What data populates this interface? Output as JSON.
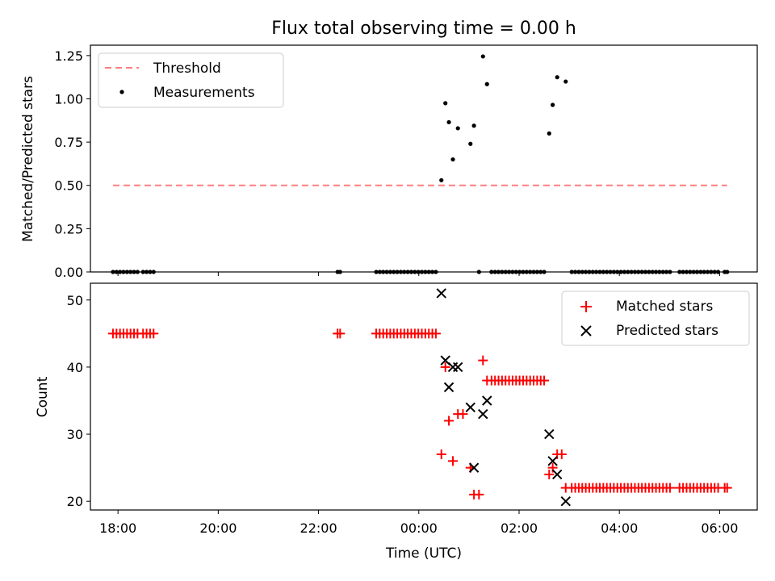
{
  "title": "Flux total observing time = 0.00 h",
  "colors": {
    "threshold": "#ff7f7f",
    "measurement": "#000000",
    "matched": "#ff0000",
    "predicted": "#000000"
  },
  "chart_data": [
    {
      "type": "scatter",
      "panel": "top",
      "ylabel": "Matched/Predicted stars",
      "xlabel": "",
      "xlim": [
        -6.55,
        6.75
      ],
      "ylim": [
        0.0,
        1.31
      ],
      "yticks": [
        0.0,
        0.25,
        0.5,
        0.75,
        1.0,
        1.25
      ],
      "ytick_labels": [
        "0.00",
        "0.25",
        "0.50",
        "0.75",
        "1.00",
        "1.25"
      ],
      "legend": {
        "position": "top-left",
        "entries": [
          "Threshold",
          "Measurements"
        ]
      },
      "threshold": {
        "label": "Threshold",
        "y": 0.5,
        "x_range": [
          -6.1,
          6.15
        ]
      },
      "series": [
        {
          "name": "Measurements",
          "points": [
            [
              -6.1,
              0
            ],
            [
              -6.03,
              0
            ],
            [
              -5.96,
              0
            ],
            [
              -5.89,
              0
            ],
            [
              -5.82,
              0
            ],
            [
              -5.75,
              0
            ],
            [
              -5.68,
              0
            ],
            [
              -5.61,
              0
            ],
            [
              -5.5,
              0
            ],
            [
              -5.43,
              0
            ],
            [
              -5.36,
              0
            ],
            [
              -5.29,
              0
            ],
            [
              -1.62,
              0
            ],
            [
              -1.57,
              0
            ],
            [
              -0.85,
              0
            ],
            [
              -0.78,
              0
            ],
            [
              -0.71,
              0
            ],
            [
              -0.64,
              0
            ],
            [
              -0.57,
              0
            ],
            [
              -0.5,
              0
            ],
            [
              -0.43,
              0
            ],
            [
              -0.36,
              0
            ],
            [
              -0.29,
              0
            ],
            [
              -0.22,
              0
            ],
            [
              -0.15,
              0
            ],
            [
              -0.08,
              0
            ],
            [
              -0.01,
              0
            ],
            [
              0.06,
              0
            ],
            [
              0.13,
              0
            ],
            [
              0.2,
              0
            ],
            [
              0.27,
              0
            ],
            [
              0.34,
              0
            ],
            [
              0.45,
              0.53
            ],
            [
              0.53,
              0.975
            ],
            [
              0.6,
              0.865
            ],
            [
              0.68,
              0.65
            ],
            [
              0.78,
              0.83
            ],
            [
              1.03,
              0.74
            ],
            [
              1.1,
              0.845
            ],
            [
              1.28,
              1.245
            ],
            [
              1.36,
              1.085
            ],
            [
              1.2,
              0
            ],
            [
              1.45,
              0
            ],
            [
              1.52,
              0
            ],
            [
              1.59,
              0
            ],
            [
              1.66,
              0
            ],
            [
              1.73,
              0
            ],
            [
              1.8,
              0
            ],
            [
              1.87,
              0
            ],
            [
              1.94,
              0
            ],
            [
              2.01,
              0
            ],
            [
              2.08,
              0
            ],
            [
              2.15,
              0
            ],
            [
              2.22,
              0
            ],
            [
              2.29,
              0
            ],
            [
              2.36,
              0
            ],
            [
              2.43,
              0
            ],
            [
              2.5,
              0
            ],
            [
              2.6,
              0.8
            ],
            [
              2.67,
              0.965
            ],
            [
              2.76,
              1.125
            ],
            [
              2.93,
              1.1
            ],
            [
              3.05,
              0
            ],
            [
              3.12,
              0
            ],
            [
              3.19,
              0
            ],
            [
              3.26,
              0
            ],
            [
              3.33,
              0
            ],
            [
              3.4,
              0
            ],
            [
              3.47,
              0
            ],
            [
              3.54,
              0
            ],
            [
              3.61,
              0
            ],
            [
              3.68,
              0
            ],
            [
              3.75,
              0
            ],
            [
              3.82,
              0
            ],
            [
              3.89,
              0
            ],
            [
              3.96,
              0
            ],
            [
              4.03,
              0
            ],
            [
              4.1,
              0
            ],
            [
              4.17,
              0
            ],
            [
              4.24,
              0
            ],
            [
              4.31,
              0
            ],
            [
              4.38,
              0
            ],
            [
              4.45,
              0
            ],
            [
              4.52,
              0
            ],
            [
              4.59,
              0
            ],
            [
              4.66,
              0
            ],
            [
              4.73,
              0
            ],
            [
              4.8,
              0
            ],
            [
              4.87,
              0
            ],
            [
              4.94,
              0
            ],
            [
              5.01,
              0
            ],
            [
              5.2,
              0
            ],
            [
              5.27,
              0
            ],
            [
              5.34,
              0
            ],
            [
              5.41,
              0
            ],
            [
              5.48,
              0
            ],
            [
              5.55,
              0
            ],
            [
              5.62,
              0
            ],
            [
              5.69,
              0
            ],
            [
              5.76,
              0
            ],
            [
              5.83,
              0
            ],
            [
              5.9,
              0
            ],
            [
              5.97,
              0
            ],
            [
              6.1,
              0
            ],
            [
              6.15,
              0
            ]
          ]
        }
      ]
    },
    {
      "type": "scatter",
      "panel": "bottom",
      "ylabel": "Count",
      "xlabel": "Time (UTC)",
      "xlim": [
        -6.55,
        6.75
      ],
      "ylim": [
        18.7,
        52.5
      ],
      "yticks": [
        20,
        30,
        40,
        50
      ],
      "ytick_labels": [
        "20",
        "30",
        "40",
        "50"
      ],
      "xticks": [
        -6,
        -4,
        -2,
        0,
        2,
        4,
        6
      ],
      "xtick_labels": [
        "18:00",
        "20:00",
        "22:00",
        "00:00",
        "02:00",
        "04:00",
        "06:00"
      ],
      "legend": {
        "position": "top-right",
        "entries": [
          "Matched stars",
          "Predicted stars"
        ]
      },
      "series": [
        {
          "name": "Matched stars",
          "marker": "plus",
          "points": [
            [
              -6.1,
              45
            ],
            [
              -6.03,
              45
            ],
            [
              -5.96,
              45
            ],
            [
              -5.89,
              45
            ],
            [
              -5.82,
              45
            ],
            [
              -5.75,
              45
            ],
            [
              -5.68,
              45
            ],
            [
              -5.61,
              45
            ],
            [
              -5.5,
              45
            ],
            [
              -5.43,
              45
            ],
            [
              -5.36,
              45
            ],
            [
              -5.29,
              45
            ],
            [
              -1.62,
              45
            ],
            [
              -1.57,
              45
            ],
            [
              -0.85,
              45
            ],
            [
              -0.78,
              45
            ],
            [
              -0.71,
              45
            ],
            [
              -0.64,
              45
            ],
            [
              -0.57,
              45
            ],
            [
              -0.5,
              45
            ],
            [
              -0.43,
              45
            ],
            [
              -0.36,
              45
            ],
            [
              -0.29,
              45
            ],
            [
              -0.22,
              45
            ],
            [
              -0.15,
              45
            ],
            [
              -0.08,
              45
            ],
            [
              -0.01,
              45
            ],
            [
              0.06,
              45
            ],
            [
              0.13,
              45
            ],
            [
              0.2,
              45
            ],
            [
              0.27,
              45
            ],
            [
              0.34,
              45
            ],
            [
              0.45,
              27
            ],
            [
              0.53,
              40
            ],
            [
              0.6,
              32
            ],
            [
              0.68,
              26
            ],
            [
              0.78,
              33
            ],
            [
              0.88,
              33
            ],
            [
              1.03,
              25
            ],
            [
              1.1,
              21
            ],
            [
              1.2,
              21
            ],
            [
              1.28,
              41
            ],
            [
              1.36,
              38
            ],
            [
              1.45,
              38
            ],
            [
              1.52,
              38
            ],
            [
              1.59,
              38
            ],
            [
              1.66,
              38
            ],
            [
              1.73,
              38
            ],
            [
              1.8,
              38
            ],
            [
              1.87,
              38
            ],
            [
              1.94,
              38
            ],
            [
              2.01,
              38
            ],
            [
              2.08,
              38
            ],
            [
              2.15,
              38
            ],
            [
              2.22,
              38
            ],
            [
              2.29,
              38
            ],
            [
              2.36,
              38
            ],
            [
              2.43,
              38
            ],
            [
              2.5,
              38
            ],
            [
              2.6,
              24
            ],
            [
              2.67,
              25
            ],
            [
              2.76,
              27
            ],
            [
              2.85,
              27
            ],
            [
              2.93,
              22
            ],
            [
              3.05,
              22
            ],
            [
              3.12,
              22
            ],
            [
              3.19,
              22
            ],
            [
              3.26,
              22
            ],
            [
              3.33,
              22
            ],
            [
              3.4,
              22
            ],
            [
              3.47,
              22
            ],
            [
              3.54,
              22
            ],
            [
              3.61,
              22
            ],
            [
              3.68,
              22
            ],
            [
              3.75,
              22
            ],
            [
              3.82,
              22
            ],
            [
              3.89,
              22
            ],
            [
              3.96,
              22
            ],
            [
              4.03,
              22
            ],
            [
              4.1,
              22
            ],
            [
              4.17,
              22
            ],
            [
              4.24,
              22
            ],
            [
              4.31,
              22
            ],
            [
              4.38,
              22
            ],
            [
              4.45,
              22
            ],
            [
              4.52,
              22
            ],
            [
              4.59,
              22
            ],
            [
              4.66,
              22
            ],
            [
              4.73,
              22
            ],
            [
              4.8,
              22
            ],
            [
              4.87,
              22
            ],
            [
              4.94,
              22
            ],
            [
              5.01,
              22
            ],
            [
              5.2,
              22
            ],
            [
              5.27,
              22
            ],
            [
              5.34,
              22
            ],
            [
              5.41,
              22
            ],
            [
              5.48,
              22
            ],
            [
              5.55,
              22
            ],
            [
              5.62,
              22
            ],
            [
              5.69,
              22
            ],
            [
              5.76,
              22
            ],
            [
              5.83,
              22
            ],
            [
              5.9,
              22
            ],
            [
              5.97,
              22
            ],
            [
              6.1,
              22
            ],
            [
              6.15,
              22
            ]
          ]
        },
        {
          "name": "Predicted stars",
          "marker": "x",
          "points": [
            [
              0.45,
              51
            ],
            [
              0.53,
              41
            ],
            [
              0.6,
              37
            ],
            [
              0.68,
              40
            ],
            [
              0.78,
              40
            ],
            [
              1.03,
              34
            ],
            [
              1.1,
              25
            ],
            [
              1.28,
              33
            ],
            [
              1.36,
              35
            ],
            [
              2.6,
              30
            ],
            [
              2.67,
              26
            ],
            [
              2.76,
              24
            ],
            [
              2.93,
              20
            ]
          ]
        }
      ]
    }
  ]
}
